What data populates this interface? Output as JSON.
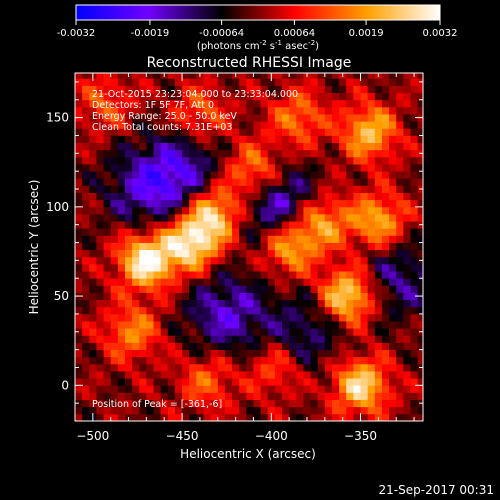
{
  "chart_data": {
    "type": "heatmap",
    "title": "Reconstructed RHESSI Image",
    "colorbar": {
      "ticks": [
        "-0.0032",
        "-0.0019",
        "-0.00064",
        "0.00064",
        "0.0019",
        "0.0032"
      ],
      "range": [
        -0.0032,
        0.0032
      ],
      "units_text": "(photons cm",
      "units_sup1": "-2",
      "units_mid": " s",
      "units_sup2": "-1",
      "units_end": " asec",
      "units_sup3": "-2",
      "units_close": ")",
      "colormap": [
        "#0000ff",
        "#7000ff",
        "#000000",
        "#ff0000",
        "#ffa000",
        "#ffffff"
      ]
    },
    "x": {
      "label": "Heliocentric X (arcsec)",
      "range": [
        -510,
        -315
      ],
      "ticks": [
        -500,
        -450,
        -400,
        -350
      ],
      "tick_labels": [
        "−500",
        "−450",
        "−400",
        "−350"
      ]
    },
    "y": {
      "label": "Heliocentric Y (arcsec)",
      "range": [
        -20,
        175
      ],
      "ticks": [
        0,
        50,
        100,
        150
      ],
      "tick_labels": [
        "0",
        "50",
        "100",
        "150"
      ]
    },
    "annotations": [
      "21-Oct-2015 23:23:04.000 to 23:33:04.000",
      "Detectors: 1F 5F 7F, Att 0",
      "Energy Range: 25.0 - 50.0 keV",
      "Clean    Total counts: 7.31E+03"
    ],
    "peak_label": "Position of Peak = [-361,-6]",
    "peak_position": [
      -361,
      -6
    ],
    "sources": [
      {
        "x": -470,
        "y": 70,
        "value": 0.0032
      },
      {
        "x": -445,
        "y": 80,
        "value": 0.0029
      },
      {
        "x": -432,
        "y": 97,
        "value": 0.0026
      },
      {
        "x": -410,
        "y": 120,
        "value": 0.002
      },
      {
        "x": -390,
        "y": 78,
        "value": 0.0024
      },
      {
        "x": -372,
        "y": 92,
        "value": 0.0022
      },
      {
        "x": -478,
        "y": 30,
        "value": 0.0017
      },
      {
        "x": -357,
        "y": 50,
        "value": 0.003
      },
      {
        "x": -340,
        "y": 92,
        "value": 0.0022
      },
      {
        "x": -345,
        "y": 142,
        "value": 0.0023
      },
      {
        "x": -385,
        "y": 150,
        "value": 0.0016
      },
      {
        "x": -440,
        "y": 152,
        "value": 0.0014
      },
      {
        "x": -493,
        "y": 158,
        "value": 0.0012
      },
      {
        "x": -350,
        "y": 0,
        "value": 0.0027
      },
      {
        "x": -436,
        "y": 3,
        "value": 0.0014
      },
      {
        "x": -398,
        "y": 10,
        "value": 0.0013
      },
      {
        "x": -450,
        "y": 120,
        "value": -0.0016
      },
      {
        "x": -395,
        "y": 100,
        "value": -0.002
      },
      {
        "x": -425,
        "y": 40,
        "value": -0.0017
      },
      {
        "x": -470,
        "y": 110,
        "value": -0.0015
      },
      {
        "x": -380,
        "y": 30,
        "value": -0.0012
      },
      {
        "x": -330,
        "y": 60,
        "value": -0.0013
      }
    ]
  },
  "footer": {
    "timestamp": "21-Sep-2017 00:31"
  }
}
